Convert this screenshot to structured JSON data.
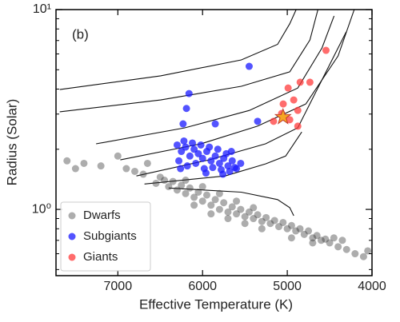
{
  "chart_data": {
    "type": "scatter",
    "annotation": "(b)",
    "x_label": "Effective Temperature (K)",
    "y_label": "Radius (Solar)",
    "xlim": [
      7730,
      4000
    ],
    "ylim": [
      0.466,
      10
    ],
    "log_y": true,
    "xticks": [
      7000,
      6000,
      5000,
      4000
    ],
    "yticks": [
      {
        "value": 1,
        "label": "10⁰"
      },
      {
        "value": 10,
        "label": "10¹"
      }
    ],
    "yminorticks": [
      0.5,
      0.6,
      0.7,
      0.8,
      0.9,
      2,
      3,
      4,
      5,
      6,
      7,
      8,
      9
    ],
    "legend": "lower left",
    "series": [
      {
        "name": "Dwarfs",
        "color": "#333333",
        "opacity": 0.4,
        "x": [
          7600,
          7400,
          7200,
          7500,
          7000,
          6900,
          6800,
          6700,
          6650,
          6550,
          6500,
          6450,
          6400,
          6350,
          6300,
          6250,
          6200,
          6150,
          6100,
          6050,
          6000,
          5950,
          5900,
          5850,
          5800,
          5750,
          5700,
          5650,
          5600,
          5550,
          5500,
          5450,
          5400,
          5350,
          5300,
          5250,
          5200,
          5150,
          5100,
          5050,
          5000,
          4950,
          4900,
          4850,
          4800,
          4750,
          4700,
          4650,
          4600,
          4550,
          4500,
          4400,
          4300,
          4200,
          4100,
          4050,
          6200,
          6000,
          5800,
          5600,
          5400,
          6100,
          5900,
          5700,
          5500,
          4950,
          4700,
          5300,
          4450,
          4350
        ],
        "y": [
          1.75,
          1.7,
          1.65,
          1.6,
          1.85,
          1.6,
          1.55,
          1.5,
          1.7,
          1.35,
          1.45,
          1.4,
          1.3,
          1.38,
          1.25,
          1.32,
          1.2,
          1.28,
          1.15,
          1.22,
          1.1,
          1.18,
          1.05,
          1.12,
          1.0,
          1.08,
          0.97,
          1.03,
          0.95,
          1.0,
          0.92,
          0.97,
          0.9,
          0.94,
          0.87,
          0.91,
          0.85,
          0.88,
          0.82,
          0.86,
          0.8,
          0.83,
          0.78,
          0.8,
          0.75,
          0.78,
          0.72,
          0.74,
          0.7,
          0.71,
          0.68,
          0.65,
          0.63,
          0.6,
          0.58,
          0.62,
          1.4,
          1.3,
          1.2,
          1.1,
          1.02,
          1.05,
          0.95,
          0.9,
          0.85,
          0.72,
          0.68,
          0.8,
          0.72,
          0.7
        ]
      },
      {
        "name": "Subgiants",
        "color": "#1a1aff",
        "opacity": 0.75,
        "x": [
          5450,
          6160,
          6190,
          6230,
          5350,
          5850,
          6300,
          6250,
          6200,
          6150,
          6100,
          6050,
          6000,
          5950,
          5900,
          5850,
          5800,
          5750,
          5700,
          5650,
          5600,
          5550,
          6280,
          6180,
          6080,
          5980,
          5880,
          5780,
          5680,
          5620,
          6220,
          6120,
          6020,
          5920,
          5820,
          5720,
          6260,
          5960,
          5760,
          5660
        ],
        "y": [
          5.2,
          3.8,
          3.2,
          2.68,
          2.76,
          2.68,
          2.1,
          1.95,
          2.05,
          1.85,
          2.0,
          1.9,
          1.8,
          1.95,
          1.75,
          1.85,
          1.7,
          1.8,
          1.65,
          1.75,
          1.6,
          1.7,
          1.75,
          1.65,
          1.7,
          1.6,
          1.62,
          1.58,
          1.55,
          1.62,
          2.2,
          2.15,
          2.1,
          2.05,
          2.0,
          1.9,
          1.6,
          1.52,
          1.5,
          1.95
        ]
      },
      {
        "name": "Giants",
        "color": "#ff3b3b",
        "opacity": 0.75,
        "x": [
          4543,
          4733,
          4848,
          4990,
          4924,
          5048,
          4876,
          4971,
          5162,
          4876,
          5067
        ],
        "y": [
          6.25,
          4.33,
          4.33,
          4.05,
          3.53,
          3.37,
          3.13,
          2.81,
          2.76,
          2.61,
          3.02
        ]
      }
    ],
    "tracks": [
      {
        "x": [
          7686,
          6495,
          5543,
          5114,
          4971,
          4895
        ],
        "y": [
          3.98,
          4.66,
          5.6,
          6.7,
          8.5,
          10
        ]
      },
      {
        "x": [
          7686,
          6495,
          5543,
          4971,
          4733,
          4638
        ],
        "y": [
          3.08,
          3.53,
          4.13,
          4.88,
          7.05,
          10
        ]
      },
      {
        "x": [
          7257,
          6210,
          5448,
          4876,
          4590,
          4448
        ],
        "y": [
          2.13,
          2.56,
          3.13,
          4.05,
          6.43,
          9.3
        ]
      },
      {
        "x": [
          6971,
          6019,
          5352,
          4781,
          4400,
          4210
        ],
        "y": [
          1.77,
          2.13,
          2.61,
          3.37,
          5.86,
          10
        ]
      },
      {
        "x": [
          6781,
          5924,
          5257,
          4876,
          4590,
          4305
        ],
        "y": [
          1.47,
          1.77,
          2.13,
          2.56,
          4.45,
          7.73
        ]
      },
      {
        "x": [
          6686,
          5733,
          5257,
          5019,
          4829
        ],
        "y": [
          1.34,
          1.47,
          1.69,
          1.85,
          2.44
        ]
      },
      {
        "x": [
          6400,
          5543,
          5114,
          4971,
          4924
        ],
        "y": [
          1.28,
          1.22,
          1.12,
          1.02,
          0.93
        ]
      }
    ],
    "highlight": {
      "x": 5050,
      "y": 2.9,
      "color": "#f5a623"
    }
  }
}
